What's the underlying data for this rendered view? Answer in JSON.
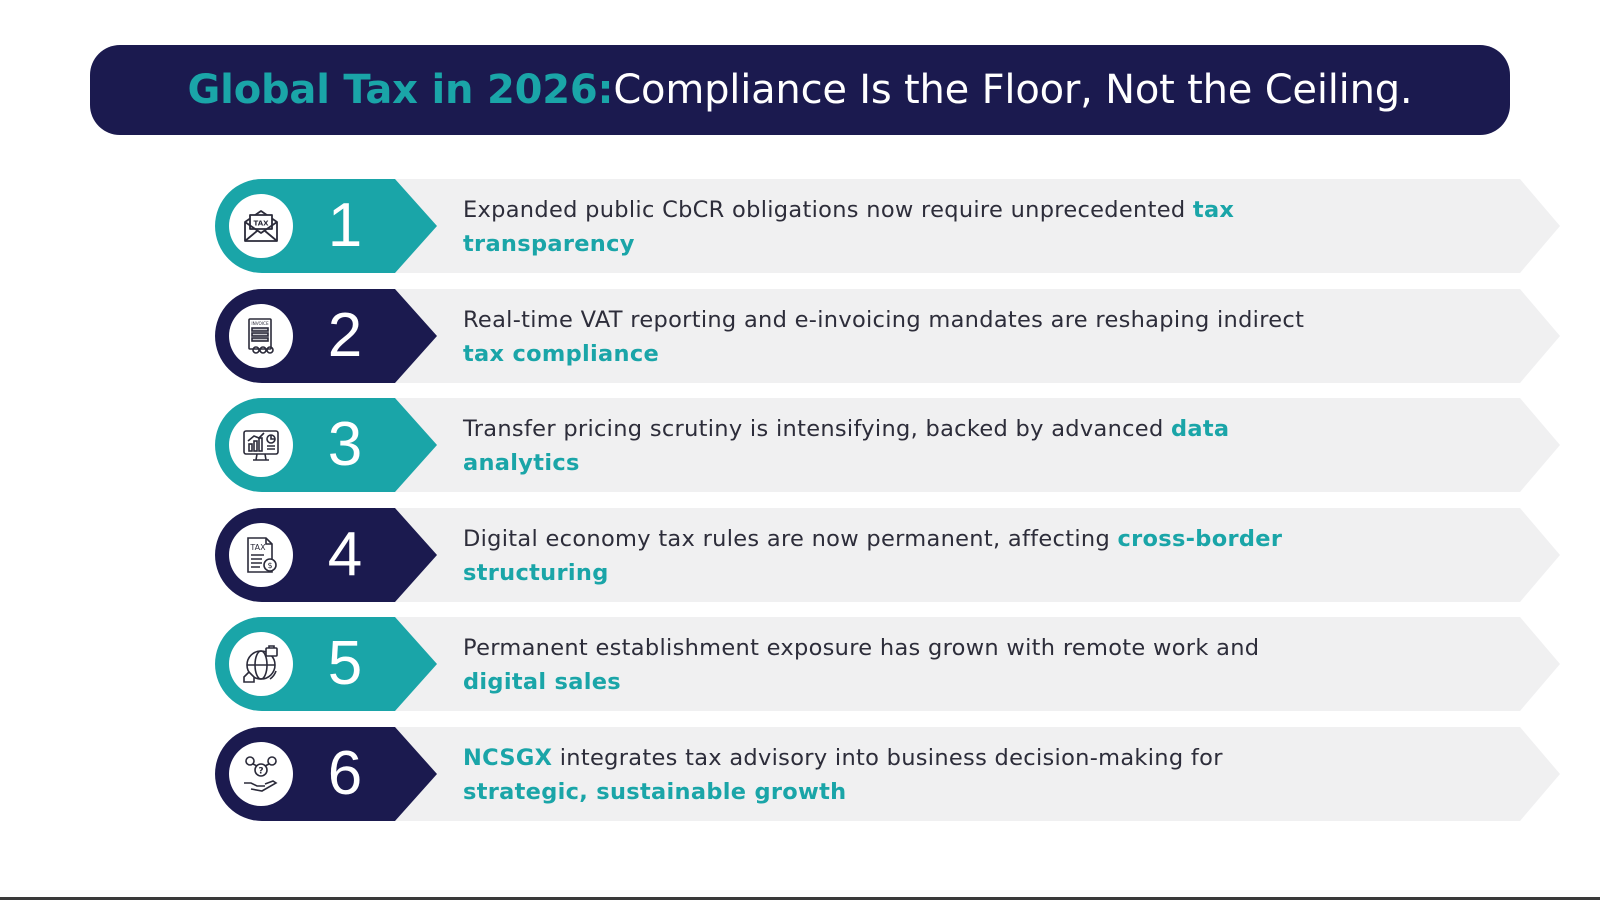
{
  "title": {
    "accent": "Global Tax in 2026:",
    "main": " Compliance Is the Floor, Not the Ceiling."
  },
  "colors": {
    "navy": "#1b1a4f",
    "teal": "#1aa5a8",
    "bar": "#f0f0f1"
  },
  "steps": [
    {
      "number": "1",
      "icon": "tax-envelope-icon",
      "badge_color": "#1aa5a8",
      "text_before": "Expanded public CbCR obligations now require unprecedented ",
      "highlight_lead": "",
      "text_mid": "",
      "highlight": "tax transparency"
    },
    {
      "number": "2",
      "icon": "invoice-icon",
      "badge_color": "#1b1a4f",
      "text_before": "Real-time VAT reporting and e-invoicing mandates are reshaping indirect ",
      "highlight_lead": "",
      "text_mid": "",
      "highlight": "tax compliance"
    },
    {
      "number": "3",
      "icon": "analytics-monitor-icon",
      "badge_color": "#1aa5a8",
      "text_before": "Transfer pricing scrutiny is intensifying, backed by advanced ",
      "highlight_lead": "",
      "text_mid": "",
      "highlight": "data analytics"
    },
    {
      "number": "4",
      "icon": "tax-document-icon",
      "badge_color": "#1b1a4f",
      "text_before": "Digital economy tax rules are now permanent, affecting ",
      "highlight_lead": "",
      "text_mid": "",
      "highlight": "cross-border structuring"
    },
    {
      "number": "5",
      "icon": "global-business-icon",
      "badge_color": "#1aa5a8",
      "text_before": "Permanent establishment exposure has grown with remote work and ",
      "highlight_lead": "",
      "text_mid": "",
      "highlight": "digital sales"
    },
    {
      "number": "6",
      "icon": "advisory-hand-icon",
      "badge_color": "#1b1a4f",
      "text_before": "",
      "highlight_lead": "NCSGX",
      "text_mid": " integrates tax advisory into business decision-making for ",
      "highlight": "strategic, sustainable growth"
    }
  ]
}
